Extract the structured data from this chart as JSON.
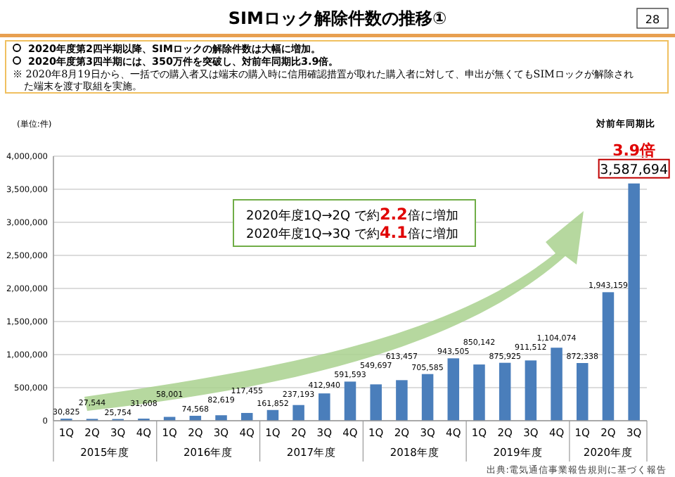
{
  "chart_data": {
    "type": "bar",
    "title": "SIMロック解除件数の推移①",
    "ylabel": "(単位:件)",
    "categories": [
      "1Q",
      "2Q",
      "3Q",
      "4Q",
      "1Q",
      "2Q",
      "3Q",
      "4Q",
      "1Q",
      "2Q",
      "3Q",
      "4Q",
      "1Q",
      "2Q",
      "3Q",
      "4Q",
      "1Q",
      "2Q",
      "3Q",
      "4Q",
      "1Q",
      "2Q",
      "3Q"
    ],
    "values": [
      30825,
      27544,
      25754,
      31608,
      58001,
      74568,
      82619,
      117455,
      161852,
      237193,
      412940,
      591593,
      549697,
      613457,
      705585,
      943505,
      850142,
      875925,
      911512,
      1104074,
      872338,
      1943159,
      3587694
    ],
    "color": "#4a7ebb",
    "ylim": [
      0,
      4000000
    ],
    "yticks": [
      {
        "value": 0,
        "label": "0"
      },
      {
        "value": 500000,
        "label": "500,000"
      },
      {
        "value": 1000000,
        "label": "1,000,000"
      },
      {
        "value": 1500000,
        "label": "1,500,000"
      },
      {
        "value": 2000000,
        "label": "2,000,000"
      },
      {
        "value": 2500000,
        "label": "2,500,000"
      },
      {
        "value": 3000000,
        "label": "3,000,000"
      },
      {
        "value": 3500000,
        "label": "3,500,000"
      },
      {
        "value": 4000000,
        "label": "4,000,000"
      }
    ],
    "grid": "y",
    "value_labels": [
      "30,825",
      "27,544",
      "25,754",
      "31,608",
      "58,001",
      "74,568",
      "82,619",
      "117,455",
      "161,852",
      "237,193",
      "412,940",
      "591,593",
      "549,697",
      "613,457",
      "705,585",
      "943,505",
      "850,142",
      "875,925",
      "911,512",
      "1,104,074",
      "872,338",
      "1,943,159",
      "3,587,694"
    ],
    "annotations": [
      "28",
      "2020年度第2四半期以降、SIMロックの解除件数は大幅に増加。",
      "2020年度第3四半期には、350万件を突破し、対前年同期比3.9倍。",
      "※ 2020年8月19日から、一括での購入者又は端末の購入時に信用確認措置が取れた購入者に対して、申出が無くてもSIMロックが解除された端末を渡す取組を実施。",
      "対前年同期比",
      "3.9倍",
      "2020年度1Q→2Q で約2.2倍に増加",
      "2020年度1Q→3Q で約4.1倍に増加",
      "出典:電気通信事業報告規則に基づく報告",
      "2015年度",
      "2016年度",
      "2017年度",
      "2018年度",
      "2019年度",
      "2020年度"
    ]
  }
}
